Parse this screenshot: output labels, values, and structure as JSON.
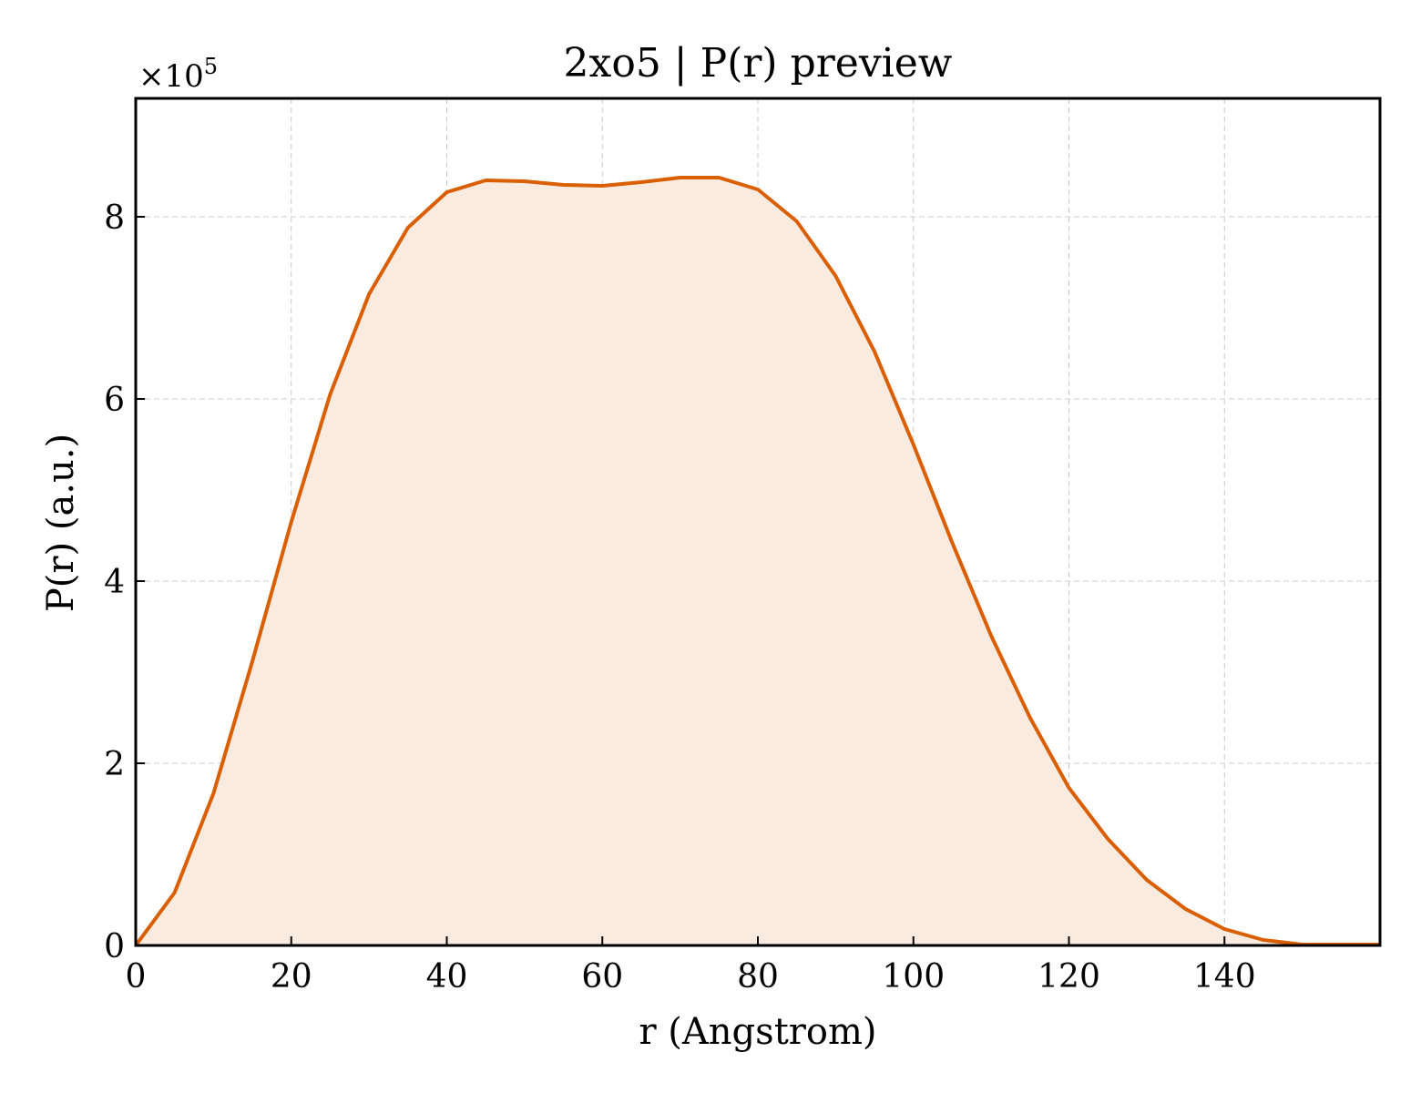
{
  "chart_data": {
    "type": "area",
    "title": "2xo5 | P(r) preview",
    "xlabel": "r (Angstrom)",
    "ylabel": "P(r) (a.u.)",
    "y_offset_label": "×10",
    "y_offset_exponent": "5",
    "xlim": [
      0,
      160
    ],
    "ylim": [
      0,
      9.3
    ],
    "x_ticks": [
      0,
      20,
      40,
      60,
      80,
      100,
      120,
      140
    ],
    "y_ticks": [
      0,
      2,
      4,
      6,
      8
    ],
    "grid": true,
    "line_color": "#d95f02",
    "fill_color": "#f9ebe0",
    "series": [
      {
        "x": [
          0,
          5,
          10,
          15,
          20,
          25,
          30,
          35,
          40,
          45,
          50,
          55,
          60,
          65,
          70,
          75,
          80,
          85,
          90,
          95,
          100,
          105,
          110,
          115,
          120,
          125,
          130,
          135,
          140,
          145,
          150,
          155,
          160
        ],
        "y": [
          0,
          0.58,
          1.67,
          3.12,
          4.65,
          6.05,
          7.15,
          7.88,
          8.27,
          8.4,
          8.39,
          8.35,
          8.34,
          8.38,
          8.43,
          8.43,
          8.3,
          7.95,
          7.35,
          6.52,
          5.5,
          4.42,
          3.4,
          2.5,
          1.73,
          1.17,
          0.72,
          0.4,
          0.18,
          0.06,
          0.01,
          0.01,
          0.01
        ]
      }
    ]
  }
}
